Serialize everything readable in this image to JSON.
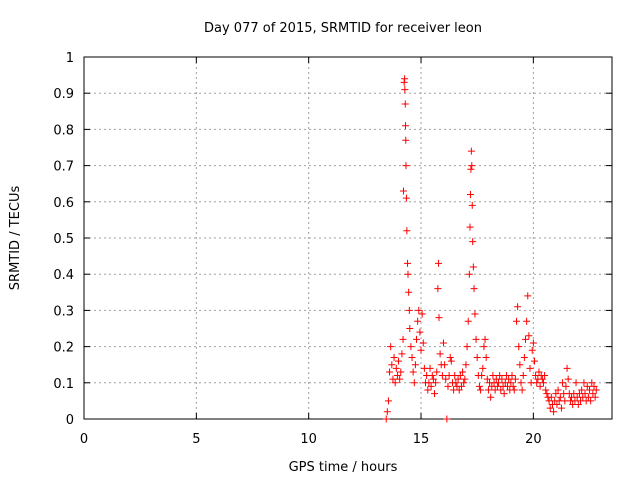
{
  "chart_data": {
    "type": "scatter",
    "title": "Day 077 of 2015, SRMTID for receiver leon",
    "xlabel": "GPS time / hours",
    "ylabel": "SRMTID / TECUs",
    "xlim": [
      0,
      23.5
    ],
    "ylim": [
      0,
      1
    ],
    "xticks": [
      0,
      5,
      10,
      15,
      20
    ],
    "yticks": [
      0,
      0.1,
      0.2,
      0.3,
      0.4,
      0.5,
      0.6,
      0.7,
      0.8,
      0.9,
      1
    ],
    "xtick_labels": [
      "0",
      "5",
      "10",
      "15",
      "20"
    ],
    "ytick_labels": [
      "0",
      "0.1",
      "0.2",
      "0.3",
      "0.4",
      "0.5",
      "0.6",
      "0.7",
      "0.8",
      "0.9",
      "1"
    ],
    "grid": true,
    "marker": "+",
    "series": [
      {
        "name": "SRMTID",
        "color": "#ff0000",
        "points": [
          [
            13.45,
            0.0
          ],
          [
            13.5,
            0.02
          ],
          [
            13.55,
            0.05
          ],
          [
            13.6,
            0.13
          ],
          [
            13.65,
            0.2
          ],
          [
            13.7,
            0.15
          ],
          [
            13.75,
            0.11
          ],
          [
            13.8,
            0.17
          ],
          [
            13.85,
            0.1
          ],
          [
            13.9,
            0.14
          ],
          [
            13.95,
            0.12
          ],
          [
            14.0,
            0.16
          ],
          [
            14.05,
            0.11
          ],
          [
            14.1,
            0.13
          ],
          [
            14.15,
            0.18
          ],
          [
            14.2,
            0.22
          ],
          [
            14.22,
            0.63
          ],
          [
            14.25,
            0.93
          ],
          [
            14.27,
            0.94
          ],
          [
            14.28,
            0.91
          ],
          [
            14.3,
            0.87
          ],
          [
            14.31,
            0.81
          ],
          [
            14.32,
            0.77
          ],
          [
            14.33,
            0.7
          ],
          [
            14.35,
            0.61
          ],
          [
            14.37,
            0.52
          ],
          [
            14.4,
            0.43
          ],
          [
            14.42,
            0.4
          ],
          [
            14.45,
            0.35
          ],
          [
            14.48,
            0.3
          ],
          [
            14.5,
            0.25
          ],
          [
            14.55,
            0.2
          ],
          [
            14.6,
            0.17
          ],
          [
            14.65,
            0.13
          ],
          [
            14.7,
            0.1
          ],
          [
            14.75,
            0.15
          ],
          [
            14.8,
            0.22
          ],
          [
            14.85,
            0.27
          ],
          [
            14.9,
            0.3
          ],
          [
            14.95,
            0.24
          ],
          [
            15.0,
            0.19
          ],
          [
            15.05,
            0.29
          ],
          [
            15.1,
            0.21
          ],
          [
            15.15,
            0.14
          ],
          [
            15.2,
            0.1
          ],
          [
            15.25,
            0.12
          ],
          [
            15.3,
            0.08
          ],
          [
            15.35,
            0.1
          ],
          [
            15.4,
            0.14
          ],
          [
            15.45,
            0.09
          ],
          [
            15.5,
            0.12
          ],
          [
            15.55,
            0.11
          ],
          [
            15.6,
            0.07
          ],
          [
            15.65,
            0.1
          ],
          [
            15.7,
            0.13
          ],
          [
            15.75,
            0.36
          ],
          [
            15.78,
            0.43
          ],
          [
            15.8,
            0.28
          ],
          [
            15.85,
            0.18
          ],
          [
            15.9,
            0.15
          ],
          [
            15.95,
            0.12
          ],
          [
            16.0,
            0.21
          ],
          [
            16.05,
            0.15
          ],
          [
            16.1,
            0.11
          ],
          [
            16.15,
            0.0
          ],
          [
            16.2,
            0.09
          ],
          [
            16.25,
            0.12
          ],
          [
            16.3,
            0.17
          ],
          [
            16.35,
            0.16
          ],
          [
            16.4,
            0.1
          ],
          [
            16.45,
            0.08
          ],
          [
            16.5,
            0.12
          ],
          [
            16.55,
            0.1
          ],
          [
            16.6,
            0.09
          ],
          [
            16.65,
            0.11
          ],
          [
            16.7,
            0.08
          ],
          [
            16.75,
            0.12
          ],
          [
            16.8,
            0.09
          ],
          [
            16.85,
            0.13
          ],
          [
            16.9,
            0.1
          ],
          [
            16.95,
            0.11
          ],
          [
            17.0,
            0.15
          ],
          [
            17.05,
            0.2
          ],
          [
            17.1,
            0.27
          ],
          [
            17.15,
            0.4
          ],
          [
            17.18,
            0.53
          ],
          [
            17.2,
            0.62
          ],
          [
            17.22,
            0.69
          ],
          [
            17.24,
            0.74
          ],
          [
            17.26,
            0.7
          ],
          [
            17.28,
            0.59
          ],
          [
            17.3,
            0.49
          ],
          [
            17.33,
            0.42
          ],
          [
            17.36,
            0.36
          ],
          [
            17.4,
            0.29
          ],
          [
            17.45,
            0.22
          ],
          [
            17.5,
            0.17
          ],
          [
            17.55,
            0.12
          ],
          [
            17.6,
            0.09
          ],
          [
            17.65,
            0.08
          ],
          [
            17.7,
            0.12
          ],
          [
            17.75,
            0.14
          ],
          [
            17.8,
            0.2
          ],
          [
            17.85,
            0.22
          ],
          [
            17.9,
            0.17
          ],
          [
            17.95,
            0.11
          ],
          [
            18.0,
            0.08
          ],
          [
            18.05,
            0.1
          ],
          [
            18.1,
            0.06
          ],
          [
            18.15,
            0.09
          ],
          [
            18.2,
            0.12
          ],
          [
            18.25,
            0.1
          ],
          [
            18.3,
            0.08
          ],
          [
            18.35,
            0.11
          ],
          [
            18.4,
            0.09
          ],
          [
            18.45,
            0.1
          ],
          [
            18.5,
            0.12
          ],
          [
            18.55,
            0.08
          ],
          [
            18.6,
            0.11
          ],
          [
            18.65,
            0.09
          ],
          [
            18.7,
            0.07
          ],
          [
            18.75,
            0.1
          ],
          [
            18.8,
            0.12
          ],
          [
            18.85,
            0.09
          ],
          [
            18.9,
            0.11
          ],
          [
            18.95,
            0.08
          ],
          [
            19.0,
            0.1
          ],
          [
            19.05,
            0.12
          ],
          [
            19.1,
            0.09
          ],
          [
            19.15,
            0.08
          ],
          [
            19.2,
            0.11
          ],
          [
            19.25,
            0.27
          ],
          [
            19.3,
            0.31
          ],
          [
            19.35,
            0.2
          ],
          [
            19.4,
            0.15
          ],
          [
            19.45,
            0.1
          ],
          [
            19.5,
            0.08
          ],
          [
            19.55,
            0.12
          ],
          [
            19.6,
            0.17
          ],
          [
            19.65,
            0.22
          ],
          [
            19.7,
            0.27
          ],
          [
            19.75,
            0.34
          ],
          [
            19.8,
            0.23
          ],
          [
            19.85,
            0.14
          ],
          [
            19.9,
            0.1
          ],
          [
            19.95,
            0.19
          ],
          [
            20.0,
            0.21
          ],
          [
            20.05,
            0.16
          ],
          [
            20.1,
            0.12
          ],
          [
            20.15,
            0.1
          ],
          [
            20.2,
            0.11
          ],
          [
            20.25,
            0.13
          ],
          [
            20.3,
            0.09
          ],
          [
            20.35,
            0.12
          ],
          [
            20.4,
            0.11
          ],
          [
            20.45,
            0.1
          ],
          [
            20.5,
            0.12
          ],
          [
            20.55,
            0.08
          ],
          [
            20.6,
            0.07
          ],
          [
            20.65,
            0.06
          ],
          [
            20.7,
            0.05
          ],
          [
            20.75,
            0.03
          ],
          [
            20.8,
            0.06
          ],
          [
            20.85,
            0.04
          ],
          [
            20.9,
            0.02
          ],
          [
            20.95,
            0.05
          ],
          [
            21.0,
            0.07
          ],
          [
            21.05,
            0.04
          ],
          [
            21.1,
            0.08
          ],
          [
            21.15,
            0.05
          ],
          [
            21.2,
            0.06
          ],
          [
            21.25,
            0.03
          ],
          [
            21.3,
            0.1
          ],
          [
            21.35,
            0.07
          ],
          [
            21.4,
            0.05
          ],
          [
            21.45,
            0.09
          ],
          [
            21.5,
            0.14
          ],
          [
            21.55,
            0.11
          ],
          [
            21.6,
            0.07
          ],
          [
            21.65,
            0.05
          ],
          [
            21.7,
            0.06
          ],
          [
            21.75,
            0.04
          ],
          [
            21.8,
            0.07
          ],
          [
            21.85,
            0.05
          ],
          [
            21.9,
            0.1
          ],
          [
            21.95,
            0.06
          ],
          [
            22.0,
            0.04
          ],
          [
            22.05,
            0.07
          ],
          [
            22.1,
            0.05
          ],
          [
            22.15,
            0.08
          ],
          [
            22.2,
            0.06
          ],
          [
            22.25,
            0.1
          ],
          [
            22.3,
            0.07
          ],
          [
            22.35,
            0.05
          ],
          [
            22.4,
            0.09
          ],
          [
            22.45,
            0.06
          ],
          [
            22.5,
            0.08
          ],
          [
            22.55,
            0.05
          ],
          [
            22.6,
            0.1
          ],
          [
            22.65,
            0.07
          ],
          [
            22.7,
            0.09
          ],
          [
            22.75,
            0.06
          ],
          [
            22.8,
            0.08
          ]
        ]
      }
    ]
  }
}
